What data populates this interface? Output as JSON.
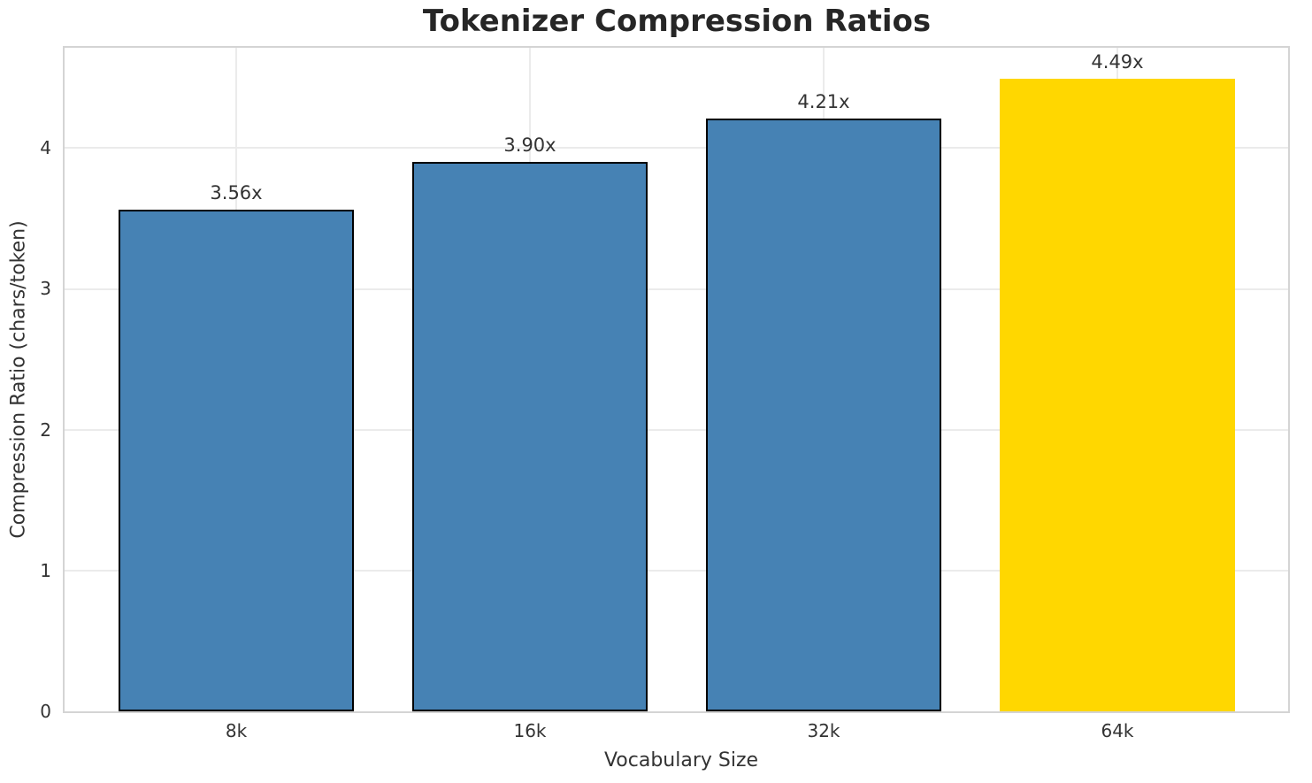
{
  "chart_data": {
    "type": "bar",
    "title": "Tokenizer Compression Ratios",
    "xlabel": "Vocabulary Size",
    "ylabel": "Compression Ratio (chars/token)",
    "categories": [
      "8k",
      "16k",
      "32k",
      "64k"
    ],
    "values": [
      3.56,
      3.9,
      4.21,
      4.49
    ],
    "bar_labels": [
      "3.56x",
      "3.90x",
      "4.21x",
      "4.49x"
    ],
    "yticks": [
      0,
      1,
      2,
      3,
      4
    ],
    "ylim": [
      0,
      4.712
    ],
    "grid": true,
    "legend": "none",
    "colors": {
      "base_bar": "#4682B4",
      "highlight_bar": "#FFD700",
      "bar_edge": "#000000",
      "gridline": "#ebebeb",
      "spine": "#d4d4d4",
      "text": "#333333",
      "title_text": "#262626"
    },
    "bar_colors": [
      "#4682B4",
      "#4682B4",
      "#4682B4",
      "#FFD700"
    ],
    "bar_edge_colors": [
      "#000000",
      "#000000",
      "#000000",
      "none"
    ]
  }
}
